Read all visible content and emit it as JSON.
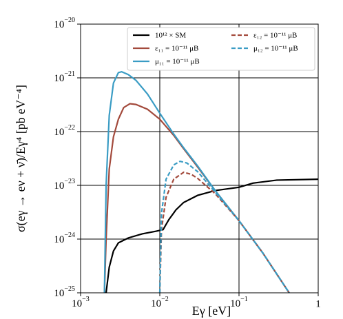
{
  "chart_data": {
    "type": "line",
    "x_label": "Eγ [eV]",
    "y_label": "σ(eγ → eν + ν̄)/Eγ⁴ [pb eV⁻⁴]",
    "xscale": "log",
    "yscale": "log",
    "grid": true,
    "legend": "upper right",
    "xlim": [
      0.001,
      1
    ],
    "ylim": [
      1e-25,
      1e-20
    ],
    "xticks": [
      {
        "value": 0.001,
        "label": "10−3"
      },
      {
        "value": 0.01,
        "label": "10−2"
      },
      {
        "value": 0.1,
        "label": "10−1"
      },
      1
    ],
    "yticks": [
      {
        "value": 1e-25,
        "label": "10−25"
      },
      {
        "value": 1e-24,
        "label": "10−24"
      },
      {
        "value": 1e-23,
        "label": "10−23"
      },
      {
        "value": 1e-22,
        "label": "10−22"
      },
      {
        "value": 1e-21,
        "label": "10−21"
      },
      {
        "value": 1e-20,
        "label": "10−20"
      }
    ],
    "series": [
      {
        "name": "10¹² × SM",
        "color": "#000000",
        "linestyle": "solid",
        "x": [
          0.0021,
          0.0023,
          0.0026,
          0.003,
          0.004,
          0.006,
          0.009,
          0.011,
          0.013,
          0.016,
          0.02,
          0.03,
          0.05,
          0.1,
          0.15,
          0.3,
          1
        ],
        "values": [
          1e-25,
          3e-25,
          6e-25,
          8.5e-25,
          1.05e-24,
          1.25e-24,
          1.4e-24,
          1.5e-24,
          2.3e-24,
          3.5e-24,
          4.8e-24,
          6.5e-24,
          8e-24,
          9.2e-24,
          1.1e-23,
          1.25e-23,
          1.3e-23
        ]
      },
      {
        "name": "ε₁₁ = 10⁻¹¹ μB",
        "color": "#a34a3c",
        "linestyle": "solid",
        "x": [
          0.002,
          0.0021,
          0.0023,
          0.0026,
          0.003,
          0.0035,
          0.0042,
          0.005,
          0.007,
          0.01,
          0.015,
          0.02,
          0.03,
          0.05,
          0.1,
          0.2,
          0.43
        ],
        "values": [
          1e-25,
          1e-24,
          2e-23,
          8e-23,
          1.7e-22,
          2.8e-22,
          3.3e-22,
          3.2e-22,
          2.6e-22,
          1.7e-22,
          8.5e-23,
          4.8e-23,
          2.2e-23,
          8e-24,
          2.2e-24,
          5.5e-25,
          1e-25
        ]
      },
      {
        "name": "μ₁₁ = 10⁻¹¹ μB",
        "color": "#3a9cc4",
        "linestyle": "solid",
        "x": [
          0.002,
          0.0021,
          0.0023,
          0.0026,
          0.003,
          0.0033,
          0.004,
          0.005,
          0.007,
          0.01,
          0.015,
          0.02,
          0.03,
          0.05,
          0.1,
          0.2,
          0.43
        ],
        "values": [
          1e-25,
          1e-23,
          2e-22,
          8e-22,
          1.25e-21,
          1.3e-21,
          1.15e-21,
          9e-22,
          5e-22,
          2.2e-22,
          9e-23,
          5e-23,
          2.3e-23,
          8e-24,
          2.2e-24,
          5.5e-25,
          1e-25
        ]
      },
      {
        "name": "ε₁₂ = 10⁻¹¹ μB",
        "color": "#a34a3c",
        "linestyle": "dashed",
        "x": [
          0.01,
          0.0105,
          0.012,
          0.015,
          0.02,
          0.025,
          0.03,
          0.05,
          0.1,
          0.2,
          0.43
        ],
        "values": [
          1e-25,
          1.5e-24,
          6e-24,
          1.3e-23,
          1.75e-23,
          1.6e-23,
          1.35e-23,
          7e-24,
          2.2e-24,
          5.5e-25,
          1e-25
        ]
      },
      {
        "name": "μ₁₂ = 10⁻¹¹ μB",
        "color": "#3a9cc4",
        "linestyle": "dashed",
        "x": [
          0.01,
          0.0105,
          0.012,
          0.015,
          0.018,
          0.022,
          0.03,
          0.05,
          0.1,
          0.2,
          0.43
        ],
        "values": [
          1e-25,
          3e-24,
          1.3e-23,
          2.4e-23,
          2.8e-23,
          2.6e-23,
          1.8e-23,
          7.5e-24,
          2.2e-24,
          5.5e-25,
          1e-25
        ]
      }
    ]
  }
}
